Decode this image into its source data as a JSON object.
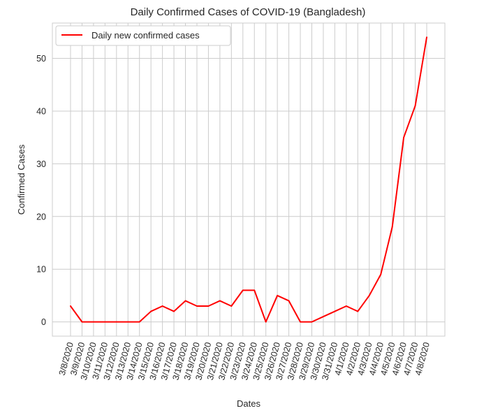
{
  "chart_data": {
    "type": "line",
    "title": "Daily Confirmed Cases of COVID-19 (Bangladesh)",
    "xlabel": "Dates",
    "ylabel": "Confirmed Cases",
    "categories": [
      "3/8/2020",
      "3/9/2020",
      "3/10/2020",
      "3/11/2020",
      "3/12/2020",
      "3/13/2020",
      "3/14/2020",
      "3/15/2020",
      "3/16/2020",
      "3/17/2020",
      "3/18/2020",
      "3/19/2020",
      "3/20/2020",
      "3/21/2020",
      "3/22/2020",
      "3/23/2020",
      "3/24/2020",
      "3/25/2020",
      "3/26/2020",
      "3/27/2020",
      "3/28/2020",
      "3/29/2020",
      "3/30/2020",
      "3/31/2020",
      "4/1/2020",
      "4/2/2020",
      "4/3/2020",
      "4/4/2020",
      "4/5/2020",
      "4/6/2020",
      "4/7/2020",
      "4/8/2020"
    ],
    "series": [
      {
        "name": "Daily new confirmed cases",
        "color": "#ff0000",
        "values": [
          3,
          0,
          0,
          0,
          0,
          0,
          0,
          2,
          3,
          2,
          4,
          3,
          3,
          4,
          3,
          6,
          6,
          0,
          5,
          4,
          0,
          0,
          1,
          2,
          3,
          2,
          5,
          9,
          18,
          35,
          41,
          54
        ]
      }
    ],
    "ylim": [
      -2.7,
      56.7
    ],
    "yticks": [
      0,
      10,
      20,
      30,
      40,
      50
    ],
    "grid": true,
    "legend_position": "top-left"
  }
}
